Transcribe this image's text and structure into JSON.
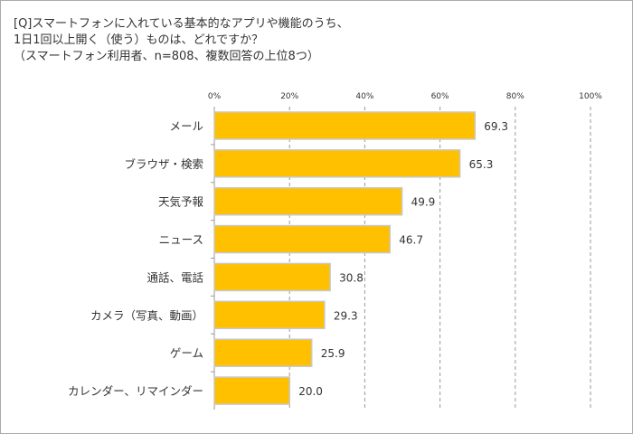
{
  "title_lines": [
    "[Q]スマートフォンに入れている基本的なアプリや機能のうち、",
    "1日1回以上開く（使う）ものは、どれですか？",
    "（スマートフォン利用者、n=808、複数回答の上位8つ）"
  ],
  "chart_data": {
    "type": "bar",
    "orientation": "horizontal",
    "title": "[Q]スマートフォンに入れている基本的なアプリや機能のうち、1日1回以上開く（使う）ものは、どれですか？（スマートフォン利用者、n=808、複数回答の上位8つ）",
    "categories": [
      "メール",
      "ブラウザ・検索",
      "天気予報",
      "ニュース",
      "通話、電話",
      "カメラ（写真、動画）",
      "ゲーム",
      "カレンダー、リマインダー"
    ],
    "values": [
      69.3,
      65.3,
      49.9,
      46.7,
      30.8,
      29.3,
      25.9,
      20.0
    ],
    "value_labels": [
      "69.3",
      "65.3",
      "49.9",
      "46.7",
      "30.8",
      "29.3",
      "25.9",
      "20.0"
    ],
    "xlim": [
      0,
      100
    ],
    "x_ticks": [
      "0%",
      "20%",
      "40%",
      "60%",
      "80%",
      "100%"
    ],
    "grid": "vertical dashed",
    "legend": "none",
    "bar_color": "#FFC000",
    "bar_border": "#C8C8C8"
  }
}
